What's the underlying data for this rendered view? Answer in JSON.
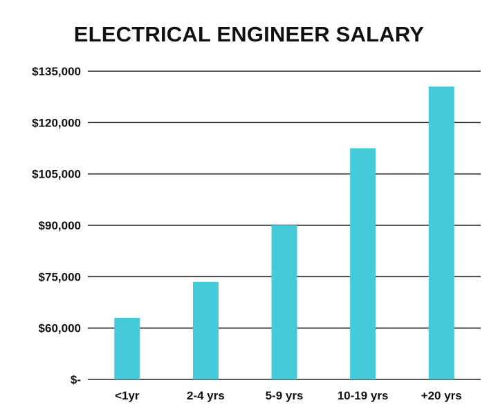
{
  "chart_data": {
    "type": "bar",
    "title": "ELECTRICAL ENGINEER SALARY",
    "xlabel": "",
    "ylabel": "",
    "categories": [
      "<1yr",
      "2-4 yrs",
      "5-9 yrs",
      "10-19 yrs",
      "+20 yrs"
    ],
    "values": [
      63000,
      73500,
      90000,
      112500,
      130500
    ],
    "ylim": [
      45000,
      135000
    ],
    "yticks": [
      45000,
      60000,
      75000,
      90000,
      105000,
      120000,
      135000
    ],
    "ytick_labels": [
      "$-",
      "$60,000",
      "$75,000",
      "$90,000",
      "$105,000",
      "$120,000",
      "$135,000"
    ],
    "grid": true,
    "legend": "none",
    "bar_color": "#45cada",
    "grid_color": "#222222"
  }
}
